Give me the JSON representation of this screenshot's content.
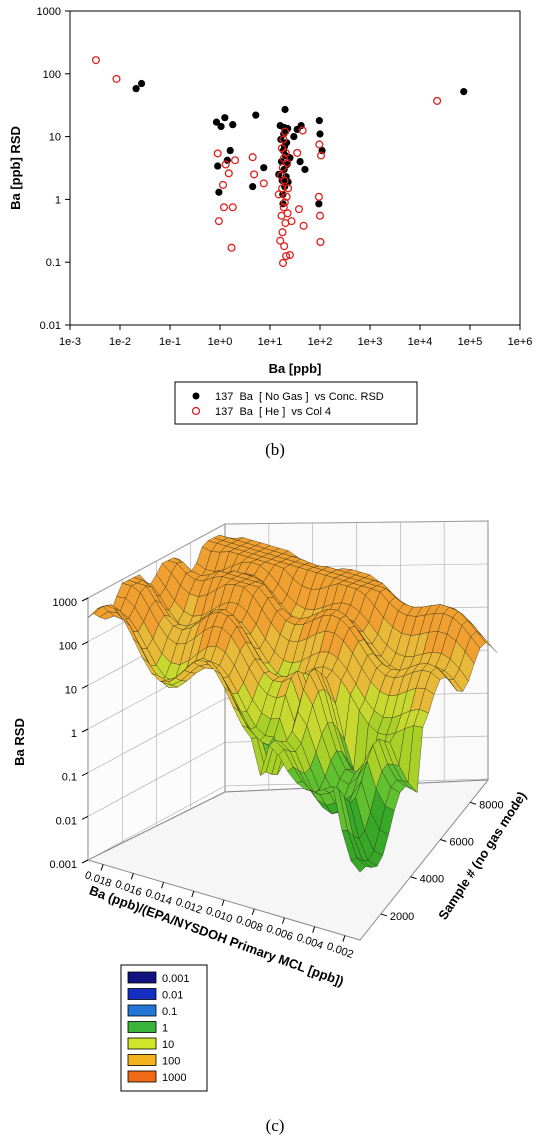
{
  "chart_data": [
    {
      "type": "scatter",
      "panel_label": "(b)",
      "xlabel": "Ba [ppb]",
      "ylabel": "Ba [ppb] RSD",
      "x_scale": "log",
      "y_scale": "log",
      "xlim": [
        0.001,
        1000000
      ],
      "ylim": [
        0.01,
        1000
      ],
      "x_ticks": [
        "1e-3",
        "1e-2",
        "1e-1",
        "1e+0",
        "1e+1",
        "1e+2",
        "1e+3",
        "1e+4",
        "1e+5",
        "1e+6"
      ],
      "y_ticks": [
        "1000",
        "100",
        "10",
        "1",
        "0.1",
        "0.01"
      ],
      "grid": false,
      "legend_position": "below",
      "series": [
        {
          "name": "137  Ba  [ No Gas ]  vs Conc. RSD",
          "marker": "filled-circle",
          "color": "#000000",
          "points": [
            [
              0.021,
              58
            ],
            [
              0.027,
              70
            ],
            [
              0.85,
              17
            ],
            [
              0.9,
              3.4
            ],
            [
              0.95,
              1.3
            ],
            [
              1.05,
              14.5
            ],
            [
              1.25,
              20
            ],
            [
              1.4,
              4.2
            ],
            [
              1.6,
              6
            ],
            [
              1.8,
              15.5
            ],
            [
              4.5,
              1.6
            ],
            [
              5.2,
              22
            ],
            [
              7.5,
              3.2
            ],
            [
              15,
              2.5
            ],
            [
              16,
              15
            ],
            [
              16.5,
              9
            ],
            [
              17,
              4
            ],
            [
              17.5,
              2
            ],
            [
              18,
              1.2
            ],
            [
              18.2,
              0.85
            ],
            [
              18.5,
              6
            ],
            [
              18.8,
              11
            ],
            [
              19,
              14
            ],
            [
              19.2,
              3
            ],
            [
              19.5,
              7
            ],
            [
              19.7,
              1.6
            ],
            [
              20,
              27
            ],
            [
              20.3,
              5
            ],
            [
              20.6,
              12
            ],
            [
              21,
              2.3
            ],
            [
              21.5,
              8
            ],
            [
              22,
              3.6
            ],
            [
              22.5,
              13.5
            ],
            [
              23,
              1.9
            ],
            [
              25,
              4.6
            ],
            [
              30,
              10
            ],
            [
              35,
              13
            ],
            [
              40,
              4
            ],
            [
              42,
              15
            ],
            [
              50,
              3
            ],
            [
              95,
              0.85
            ],
            [
              97,
              18
            ],
            [
              100,
              11
            ],
            [
              110,
              6
            ],
            [
              75000,
              52
            ]
          ]
        },
        {
          "name": "137  Ba  [ He ]  vs Col 4",
          "marker": "open-circle",
          "color": "#e0201c",
          "points": [
            [
              0.0033,
              165
            ],
            [
              0.0085,
              83
            ],
            [
              0.9,
              5.4
            ],
            [
              0.95,
              0.45
            ],
            [
              1.15,
              1.7
            ],
            [
              1.2,
              0.75
            ],
            [
              1.3,
              3.6
            ],
            [
              1.5,
              2.6
            ],
            [
              1.7,
              0.17
            ],
            [
              1.8,
              0.75
            ],
            [
              2.0,
              4.2
            ],
            [
              4.5,
              4.7
            ],
            [
              4.8,
              2.5
            ],
            [
              7.5,
              1.8
            ],
            [
              15,
              1.2
            ],
            [
              16,
              0.22
            ],
            [
              16.5,
              2.4
            ],
            [
              17,
              0.55
            ],
            [
              17.3,
              6.5
            ],
            [
              17.5,
              1.5
            ],
            [
              17.8,
              0.3
            ],
            [
              18,
              3.2
            ],
            [
              18.2,
              0.097
            ],
            [
              18.5,
              9
            ],
            [
              18.8,
              0.75
            ],
            [
              19,
              4.5
            ],
            [
              19.2,
              0.18
            ],
            [
              19.5,
              2.0
            ],
            [
              19.8,
              0.9
            ],
            [
              20,
              12
            ],
            [
              20.3,
              0.42
            ],
            [
              20.6,
              5.5
            ],
            [
              21,
              0.125
            ],
            [
              21.5,
              1.1
            ],
            [
              22,
              3.8
            ],
            [
              22.5,
              0.6
            ],
            [
              23,
              1.5
            ],
            [
              25,
              0.13
            ],
            [
              27,
              0.45
            ],
            [
              35,
              5.5
            ],
            [
              38,
              0.7
            ],
            [
              45,
              12.5
            ],
            [
              47,
              0.38
            ],
            [
              95,
              1.1
            ],
            [
              97,
              7.5
            ],
            [
              100,
              0.55
            ],
            [
              102,
              0.21
            ],
            [
              105,
              5
            ],
            [
              22000,
              37
            ]
          ]
        }
      ]
    },
    {
      "type": "surface3d",
      "panel_label": "(c)",
      "xlabel": "Ba (ppb)/(EPA/NYSDOH Primary MCL [ppb])",
      "ylabel": "Sample # (no gas mode)",
      "zlabel": "Ba RSD",
      "z_scale": "log",
      "z_ticks": [
        "1000",
        "100",
        "10",
        "1",
        "0.1",
        "0.01",
        "0.001"
      ],
      "x_ticks": [
        "0.018",
        "0.016",
        "0.014",
        "0.012",
        "0.010",
        "0.008",
        "0.006",
        "0.004",
        "0.002"
      ],
      "y_ticks": [
        "2000",
        "4000",
        "6000",
        "8000"
      ],
      "xlim": [
        0.0,
        0.019
      ],
      "ylim": [
        0,
        9000
      ],
      "zlim": [
        0.001,
        1000
      ],
      "surface_levels": [
        "#f0a030",
        "#e8b838",
        "#c8d830",
        "#a8d028",
        "#60c030",
        "#38a828"
      ],
      "color_legend": [
        {
          "label": "0.001",
          "color": "#10127e"
        },
        {
          "label": "0.01",
          "color": "#1530c0"
        },
        {
          "label": "0.1",
          "color": "#2277d6"
        },
        {
          "label": "1",
          "color": "#3ab53a"
        },
        {
          "label": "10",
          "color": "#cfe62a"
        },
        {
          "label": "100",
          "color": "#f2b21e"
        },
        {
          "label": "1000",
          "color": "#ee6a16"
        }
      ]
    }
  ]
}
